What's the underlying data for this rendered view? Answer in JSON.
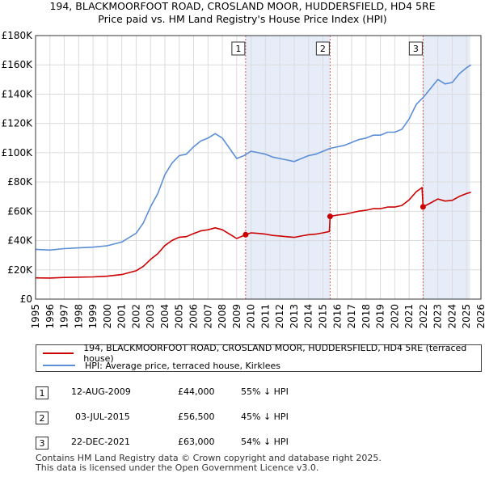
{
  "title_line1": "194, BLACKMOORFOOT ROAD, CROSLAND MOOR, HUDDERSFIELD, HD4 5RE",
  "title_line2": "Price paid vs. HM Land Registry's House Price Index (HPI)",
  "colors": {
    "price_line": "#cc0000",
    "hpi_line": "#5b8ed6",
    "shade": "#e6ecf8",
    "marker_line": "#e05a5a",
    "grid": "#dcdcdc"
  },
  "chart_data": {
    "type": "line",
    "title": "Price paid vs. HM Land Registry's House Price Index (HPI)",
    "xlabel": "",
    "ylabel": "",
    "xlim": [
      1995,
      2026
    ],
    "ylim": [
      0,
      180000
    ],
    "x_ticks": [
      "1995",
      "1996",
      "1997",
      "1998",
      "1999",
      "2000",
      "2001",
      "2002",
      "2003",
      "2004",
      "2005",
      "2006",
      "2007",
      "2008",
      "2009",
      "2010",
      "2011",
      "2012",
      "2013",
      "2014",
      "2015",
      "2016",
      "2017",
      "2018",
      "2019",
      "2020",
      "2021",
      "2022",
      "2023",
      "2024",
      "2025",
      "2026"
    ],
    "y_ticks": [
      {
        "value": 0,
        "label": "£0"
      },
      {
        "value": 20000,
        "label": "£20K"
      },
      {
        "value": 40000,
        "label": "£40K"
      },
      {
        "value": 60000,
        "label": "£60K"
      },
      {
        "value": 80000,
        "label": "£80K"
      },
      {
        "value": 100000,
        "label": "£100K"
      },
      {
        "value": 120000,
        "label": "£120K"
      },
      {
        "value": 140000,
        "label": "£140K"
      },
      {
        "value": 160000,
        "label": "£160K"
      },
      {
        "value": 180000,
        "label": "£180K"
      }
    ],
    "grid": true,
    "series": [
      {
        "name": "HPI: Average price, terraced house, Kirklees",
        "x": [
          1995,
          1996,
          1997,
          1998,
          1999,
          2000,
          2001,
          2002,
          2002.5,
          2003,
          2003.5,
          2004,
          2004.5,
          2005,
          2005.5,
          2006,
          2006.5,
          2007,
          2007.5,
          2008,
          2008.5,
          2009,
          2009.5,
          2010,
          2010.5,
          2011,
          2011.5,
          2012,
          2012.5,
          2013,
          2013.5,
          2014,
          2014.5,
          2015,
          2015.5,
          2016,
          2016.5,
          2017,
          2017.5,
          2018,
          2018.5,
          2019,
          2019.5,
          2020,
          2020.5,
          2021,
          2021.5,
          2022,
          2022.5,
          2023,
          2023.5,
          2024,
          2024.5,
          2025,
          2025.3
        ],
        "values": [
          34000,
          33500,
          34500,
          35000,
          35500,
          36500,
          39000,
          45000,
          52000,
          63000,
          72000,
          85000,
          93000,
          98000,
          99000,
          104000,
          108000,
          110000,
          113000,
          110000,
          103000,
          96000,
          98000,
          101000,
          100000,
          99000,
          97000,
          96000,
          95000,
          94000,
          96000,
          98000,
          99000,
          101000,
          103000,
          104000,
          105000,
          107000,
          109000,
          110000,
          112000,
          112000,
          114000,
          114000,
          116000,
          123000,
          133000,
          138000,
          144000,
          150000,
          147000,
          148000,
          154000,
          158000,
          160000
        ]
      },
      {
        "name": "194, BLACKMOORFOOT ROAD, CROSLAND MOOR, HUDDERSFIELD, HD4 5RE (terraced house)",
        "x": [
          1995,
          1996,
          1997,
          1998,
          1999,
          2000,
          2001,
          2002,
          2002.5,
          2003,
          2003.5,
          2004,
          2004.5,
          2005,
          2005.5,
          2006,
          2006.5,
          2007,
          2007.5,
          2008,
          2008.5,
          2009,
          2009.62,
          2010,
          2010.5,
          2011,
          2011.5,
          2012,
          2012.5,
          2013,
          2013.5,
          2014,
          2014.5,
          2015,
          2015.45,
          2015.5,
          2016,
          2016.5,
          2017,
          2017.5,
          2018,
          2018.5,
          2019,
          2019.5,
          2020,
          2020.5,
          2021,
          2021.5,
          2021.9,
          2021.97,
          2022.5,
          2023,
          2023.5,
          2024,
          2024.5,
          2025,
          2025.3
        ],
        "values": [
          14500,
          14400,
          14800,
          15000,
          15200,
          15700,
          16800,
          19400,
          22400,
          27100,
          31000,
          36600,
          40100,
          42300,
          42700,
          44800,
          46600,
          47400,
          48700,
          47400,
          44400,
          41400,
          44000,
          45300,
          44900,
          44400,
          43500,
          43100,
          42600,
          42200,
          43100,
          44000,
          44400,
          45300,
          46200,
          56500,
          57400,
          57900,
          59000,
          60100,
          60700,
          61800,
          61800,
          62900,
          62900,
          64000,
          67800,
          73400,
          76200,
          63000,
          65700,
          68400,
          67000,
          67500,
          70200,
          72100,
          73000
        ]
      }
    ],
    "shaded_ranges": [
      [
        2009.62,
        2015.5
      ],
      [
        2021.97,
        2025.25
      ]
    ],
    "markers": [
      {
        "label": "1",
        "x": 2009.62,
        "value": 44000
      },
      {
        "label": "2",
        "x": 2015.5,
        "value": 56500
      },
      {
        "label": "3",
        "x": 2021.97,
        "value": 63000
      }
    ]
  },
  "legend": {
    "items": [
      {
        "label": "194, BLACKMOORFOOT ROAD, CROSLAND MOOR, HUDDERSFIELD, HD4 5RE (terraced house)"
      },
      {
        "label": "HPI: Average price, terraced house, Kirklees"
      }
    ]
  },
  "table": {
    "rows": [
      {
        "num": "1",
        "date": "12-AUG-2009",
        "price": "£44,000",
        "hpi": "55% ↓ HPI"
      },
      {
        "num": "2",
        "date": "03-JUL-2015",
        "price": "£56,500",
        "hpi": "45% ↓ HPI"
      },
      {
        "num": "3",
        "date": "22-DEC-2021",
        "price": "£63,000",
        "hpi": "54% ↓ HPI"
      }
    ]
  },
  "footer": {
    "line1": "Contains HM Land Registry data © Crown copyright and database right 2025.",
    "line2": "This data is licensed under the Open Government Licence v3.0."
  }
}
